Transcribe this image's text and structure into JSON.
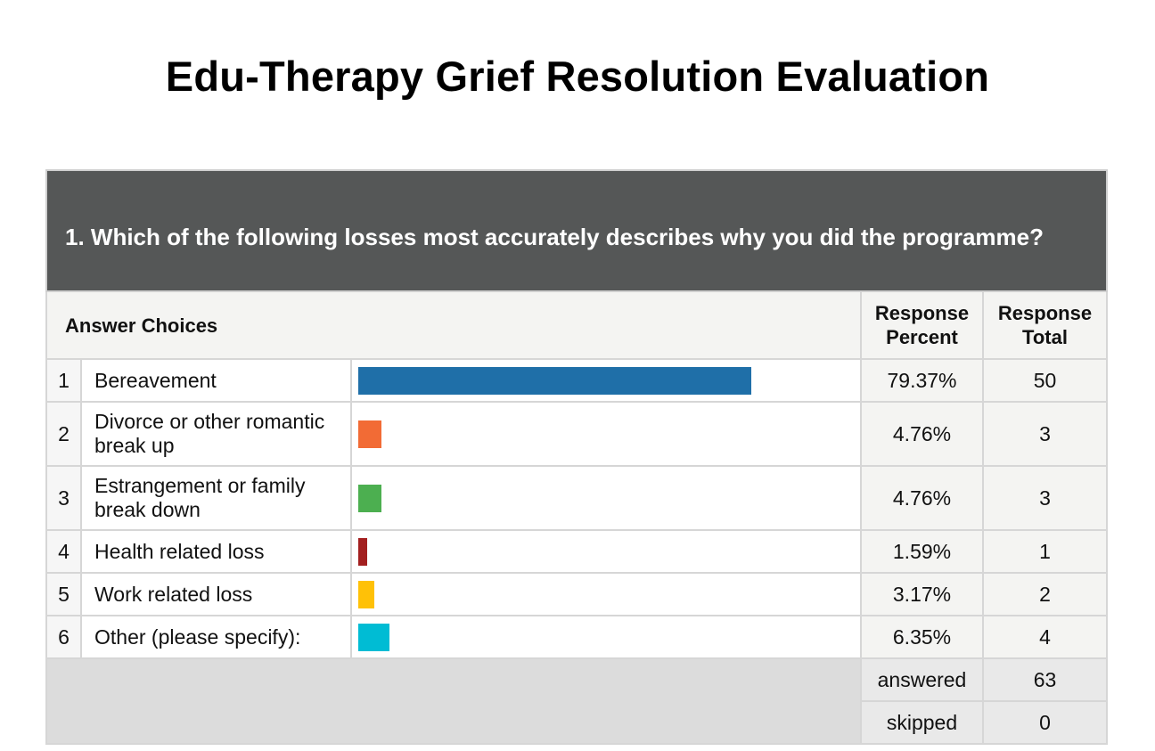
{
  "page": {
    "title": "Edu-Therapy Grief Resolution Evaluation"
  },
  "question": {
    "text": "1. Which of the following losses most accurately describes why you did the programme?"
  },
  "columns": {
    "answer_choices": "Answer Choices",
    "response_percent": "Response Percent",
    "response_total": "Response Total"
  },
  "rows": [
    {
      "num": "1",
      "label": "Bereavement",
      "percent": "79.37%",
      "total": "50"
    },
    {
      "num": "2",
      "label": "Divorce or other romantic break up",
      "percent": "4.76%",
      "total": "3"
    },
    {
      "num": "3",
      "label": "Estrangement or family break down",
      "percent": "4.76%",
      "total": "3"
    },
    {
      "num": "4",
      "label": "Health related loss",
      "percent": "1.59%",
      "total": "1"
    },
    {
      "num": "5",
      "label": "Work related loss",
      "percent": "3.17%",
      "total": "2"
    },
    {
      "num": "6",
      "label": "Other (please specify):",
      "percent": "6.35%",
      "total": "4"
    }
  ],
  "summary": {
    "answered_label": "answered",
    "answered_value": "63",
    "skipped_label": "skipped",
    "skipped_value": "0"
  },
  "chart_data": {
    "type": "bar",
    "orientation": "horizontal",
    "categories": [
      "Bereavement",
      "Divorce or other romantic break up",
      "Estrangement or family break down",
      "Health related loss",
      "Work related loss",
      "Other (please specify):"
    ],
    "values": [
      79.37,
      4.76,
      4.76,
      1.59,
      3.17,
      6.35
    ],
    "totals": [
      50,
      3,
      3,
      1,
      2,
      4
    ],
    "colors": [
      "#1f6fa8",
      "#f26b35",
      "#4caf50",
      "#a31f1f",
      "#ffc107",
      "#00bcd4"
    ],
    "xlim": [
      0,
      100
    ],
    "answered": 63,
    "skipped": 0
  }
}
